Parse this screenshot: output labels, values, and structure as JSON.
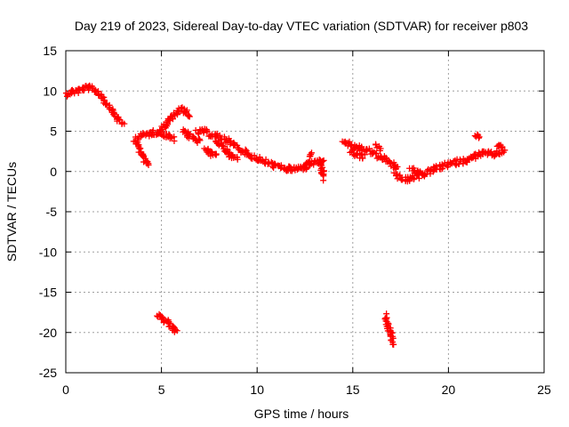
{
  "chart_data": {
    "type": "scatter",
    "title": "Day 219 of 2023, Sidereal Day-to-day VTEC variation (SDTVAR) for receiver p803",
    "xlabel": "GPS time / hours",
    "ylabel": "SDTVAR / TECUs",
    "xlim": [
      0,
      25
    ],
    "ylim": [
      -25,
      15
    ],
    "xticks": [
      0,
      5,
      10,
      15,
      20,
      25
    ],
    "yticks": [
      -25,
      -20,
      -15,
      -10,
      -5,
      0,
      5,
      10,
      15
    ],
    "grid": true,
    "marker": "+",
    "series": [
      {
        "name": "SDTVAR",
        "color": "#ff0000",
        "segments": [
          [
            [
              0.0,
              9.6
            ],
            [
              0.3,
              9.9
            ],
            [
              0.6,
              10.0
            ],
            [
              0.9,
              10.3
            ],
            [
              1.2,
              10.4
            ],
            [
              1.5,
              10.1
            ],
            [
              1.8,
              9.6
            ],
            [
              2.1,
              8.6
            ],
            [
              2.4,
              7.6
            ],
            [
              2.7,
              6.6
            ],
            [
              3.0,
              5.8
            ]
          ],
          [
            [
              3.6,
              4.0
            ],
            [
              3.9,
              4.4
            ],
            [
              4.2,
              4.6
            ],
            [
              4.5,
              4.8
            ],
            [
              4.8,
              4.9
            ],
            [
              5.1,
              4.7
            ],
            [
              5.4,
              4.3
            ],
            [
              5.7,
              4.0
            ]
          ],
          [
            [
              3.7,
              3.6
            ],
            [
              3.9,
              2.6
            ],
            [
              4.1,
              1.6
            ],
            [
              4.3,
              0.8
            ]
          ],
          [
            [
              5.0,
              5.2
            ],
            [
              5.3,
              6.0
            ],
            [
              5.6,
              6.8
            ],
            [
              5.9,
              7.4
            ],
            [
              6.0,
              7.6
            ]
          ],
          [
            [
              6.0,
              7.8
            ],
            [
              6.3,
              7.4
            ],
            [
              6.5,
              6.8
            ]
          ],
          [
            [
              6.1,
              5.2
            ],
            [
              6.4,
              4.5
            ],
            [
              6.7,
              4.0
            ],
            [
              7.0,
              3.7
            ]
          ],
          [
            [
              6.8,
              4.8
            ],
            [
              7.2,
              5.0
            ],
            [
              7.6,
              4.6
            ],
            [
              8.0,
              4.3
            ],
            [
              8.4,
              3.9
            ],
            [
              8.8,
              3.3
            ],
            [
              9.2,
              2.6
            ],
            [
              9.6,
              2.0
            ],
            [
              10.0,
              1.6
            ],
            [
              10.4,
              1.2
            ],
            [
              10.8,
              0.8
            ],
            [
              11.2,
              0.5
            ],
            [
              11.6,
              0.3
            ],
            [
              12.0,
              0.3
            ],
            [
              12.4,
              0.5
            ],
            [
              12.8,
              1.0
            ],
            [
              13.2,
              1.2
            ],
            [
              13.5,
              1.0
            ]
          ],
          [
            [
              7.3,
              2.9
            ],
            [
              7.6,
              2.2
            ],
            [
              7.9,
              2.0
            ]
          ],
          [
            [
              7.8,
              4.0
            ],
            [
              8.2,
              3.0
            ],
            [
              8.6,
              2.0
            ],
            [
              9.0,
              1.5
            ]
          ],
          [
            [
              12.6,
              0.4
            ],
            [
              12.8,
              2.2
            ]
          ],
          [
            [
              13.3,
              1.2
            ],
            [
              13.5,
              -0.8
            ]
          ],
          [
            [
              14.5,
              3.8
            ],
            [
              14.8,
              3.4
            ],
            [
              15.1,
              3.1
            ],
            [
              15.4,
              2.9
            ],
            [
              15.7,
              2.7
            ],
            [
              16.0,
              2.4
            ],
            [
              16.2,
              2.2
            ]
          ],
          [
            [
              14.9,
              2.6
            ],
            [
              15.3,
              2.0
            ],
            [
              15.6,
              1.8
            ]
          ],
          [
            [
              16.2,
              3.2
            ],
            [
              16.4,
              2.8
            ]
          ],
          [
            [
              16.3,
              1.8
            ],
            [
              16.6,
              1.6
            ],
            [
              16.9,
              1.2
            ],
            [
              17.2,
              0.6
            ],
            [
              17.3,
              0.3
            ]
          ],
          [
            [
              17.2,
              -0.3
            ],
            [
              17.5,
              -0.8
            ],
            [
              17.8,
              -1.1
            ],
            [
              18.1,
              -0.8
            ],
            [
              18.4,
              -0.6
            ],
            [
              18.7,
              -0.3
            ],
            [
              19.0,
              0.0
            ],
            [
              19.3,
              0.3
            ],
            [
              19.6,
              0.5
            ],
            [
              19.9,
              0.8
            ],
            [
              20.2,
              1.0
            ],
            [
              20.5,
              1.2
            ],
            [
              20.8,
              1.3
            ],
            [
              21.1,
              1.5
            ],
            [
              21.4,
              1.9
            ],
            [
              21.7,
              2.2
            ],
            [
              22.0,
              2.2
            ],
            [
              22.3,
              2.1
            ],
            [
              22.6,
              2.3
            ],
            [
              22.9,
              2.6
            ]
          ],
          [
            [
              18.0,
              0.2
            ],
            [
              18.3,
              0.0
            ],
            [
              18.6,
              -0.2
            ]
          ],
          [
            [
              21.4,
              4.5
            ],
            [
              21.6,
              4.2
            ]
          ],
          [
            [
              22.5,
              3.4
            ],
            [
              22.8,
              3.0
            ]
          ],
          [
            [
              4.8,
              -17.7
            ],
            [
              5.1,
              -18.4
            ],
            [
              5.4,
              -19.0
            ],
            [
              5.7,
              -19.7
            ],
            [
              5.8,
              -20.0
            ]
          ],
          [
            [
              16.7,
              -17.8
            ],
            [
              16.8,
              -18.9
            ],
            [
              16.95,
              -20.0
            ],
            [
              17.05,
              -20.8
            ],
            [
              17.1,
              -21.3
            ]
          ]
        ]
      }
    ]
  }
}
